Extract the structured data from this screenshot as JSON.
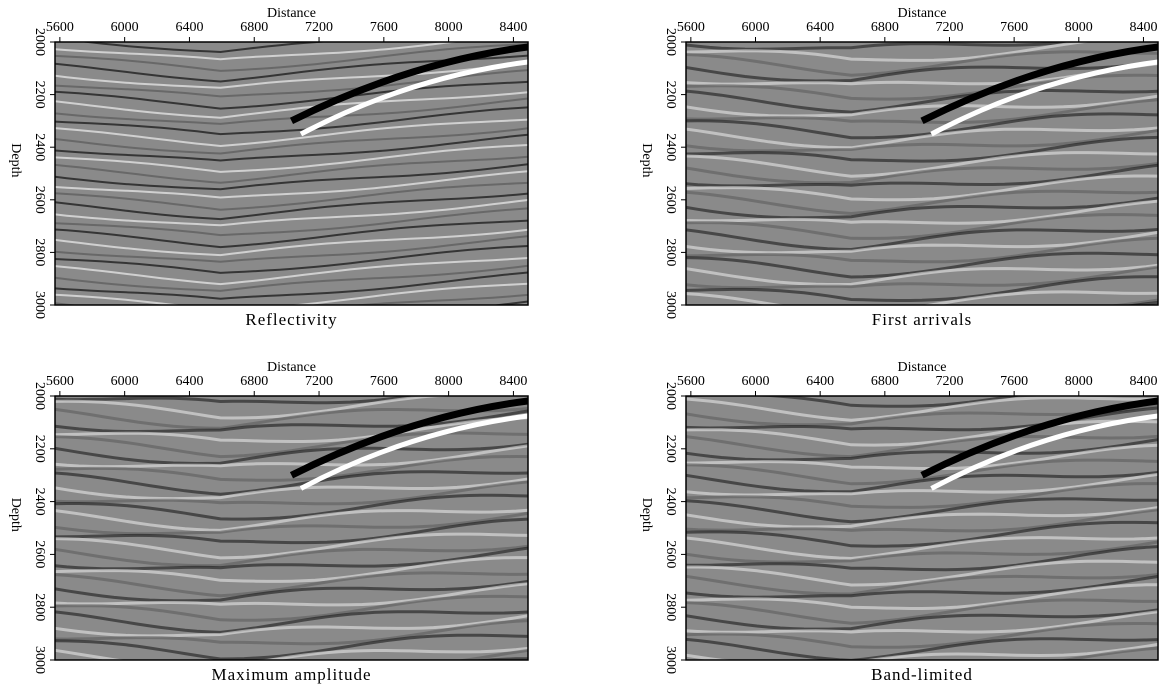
{
  "chart_data": [
    {
      "type": "image",
      "title": "Reflectivity",
      "xlabel": "Distance",
      "ylabel": "Depth",
      "xlim": [
        5570,
        8490
      ],
      "ylim": [
        3000,
        2000
      ],
      "xticks": [
        5600,
        6000,
        6400,
        6800,
        7200,
        7600,
        8000,
        8400
      ],
      "yticks": [
        2000,
        2200,
        2400,
        2600,
        2800,
        3000
      ]
    },
    {
      "type": "image",
      "title": "First arrivals",
      "xlabel": "Distance",
      "ylabel": "Depth",
      "xlim": [
        5570,
        8490
      ],
      "ylim": [
        3000,
        2000
      ],
      "xticks": [
        5600,
        6000,
        6400,
        6800,
        7200,
        7600,
        8000,
        8400
      ],
      "yticks": [
        2000,
        2200,
        2400,
        2600,
        2800,
        3000
      ]
    },
    {
      "type": "image",
      "title": "Maximum amplitude",
      "xlabel": "Distance",
      "ylabel": "Depth",
      "xlim": [
        5570,
        8490
      ],
      "ylim": [
        3000,
        2000
      ],
      "xticks": [
        5600,
        6000,
        6400,
        6800,
        7200,
        7600,
        8000,
        8400
      ],
      "yticks": [
        2000,
        2200,
        2400,
        2600,
        2800,
        3000
      ]
    },
    {
      "type": "image",
      "title": "Band-limited",
      "xlabel": "Distance",
      "ylabel": "Depth",
      "xlim": [
        5570,
        8490
      ],
      "ylim": [
        3000,
        2000
      ],
      "xticks": [
        5600,
        6000,
        6400,
        6800,
        7200,
        7600,
        8000,
        8400
      ],
      "yticks": [
        2000,
        2200,
        2400,
        2600,
        2800,
        3000
      ]
    }
  ]
}
